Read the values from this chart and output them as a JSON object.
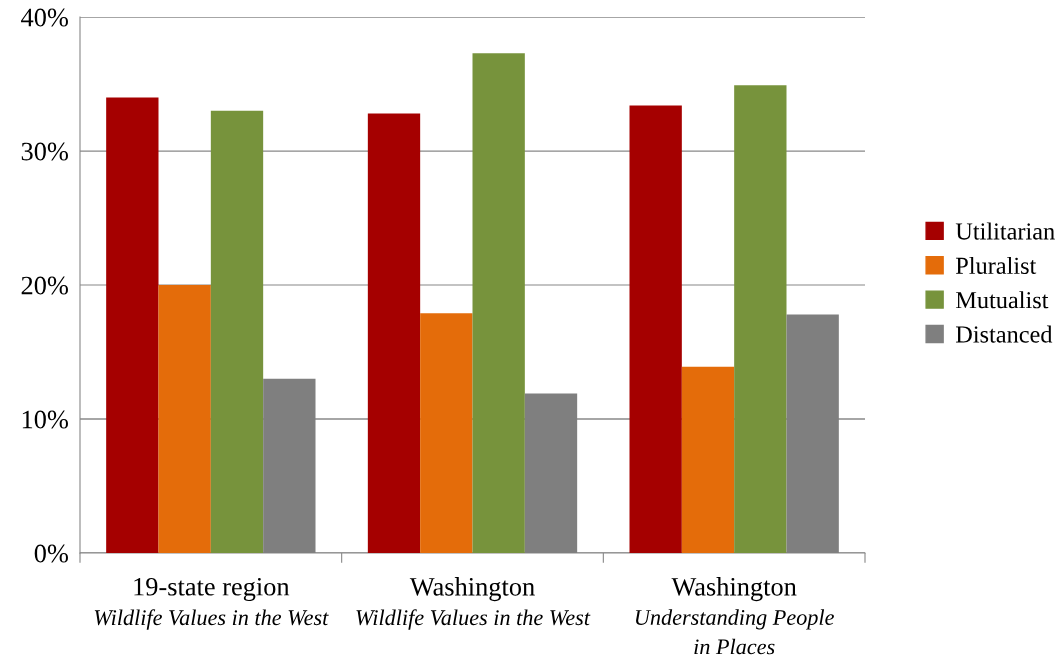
{
  "chart_data": {
    "type": "bar",
    "categories": [
      "19-state region\nWildlife Values in the West",
      "Washington\nWildlife Values in the West",
      "Washington\nUnderstanding People\nin Places"
    ],
    "series": [
      {
        "name": "Utilitarian",
        "color": "#a50000",
        "values": [
          34.0,
          32.8,
          33.4
        ]
      },
      {
        "name": "Pluralist",
        "color": "#e46c0a",
        "values": [
          20.0,
          17.9,
          13.9
        ]
      },
      {
        "name": "Mutualist",
        "color": "#77933c",
        "values": [
          33.0,
          37.3,
          34.9
        ]
      },
      {
        "name": "Distanced",
        "color": "#7f7f7f",
        "values": [
          13.0,
          11.9,
          17.8
        ]
      }
    ],
    "ylim": [
      0,
      40
    ],
    "yticks": [
      {
        "value": 0,
        "label": "0%"
      },
      {
        "value": 10,
        "label": "10%"
      },
      {
        "value": 20,
        "label": "20%"
      },
      {
        "value": 30,
        "label": "30%"
      },
      {
        "value": 40,
        "label": "40%"
      }
    ],
    "grid": "y",
    "legend": "right"
  }
}
